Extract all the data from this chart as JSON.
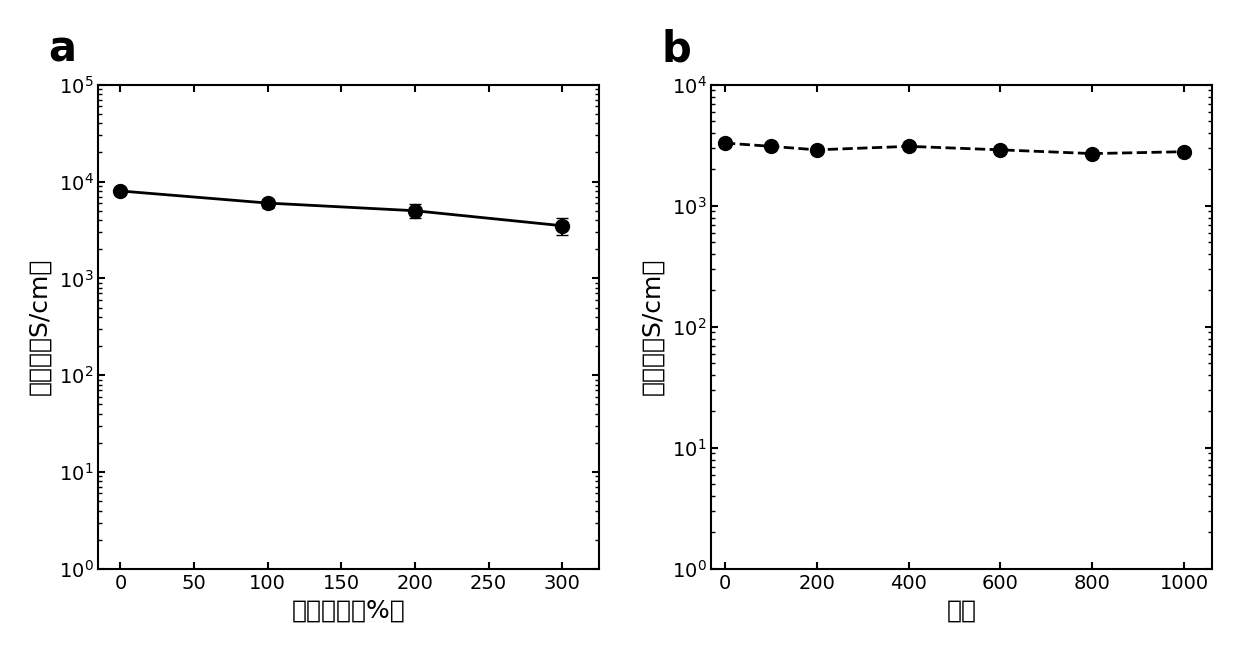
{
  "panel_a": {
    "x": [
      0,
      100,
      200,
      300
    ],
    "y": [
      8000,
      6000,
      5000,
      3500
    ],
    "yerr": [
      500,
      600,
      800,
      700
    ],
    "xlabel": "拉伸应变（%）",
    "ylabel": "电导率（S/cm）",
    "xlim": [
      -15,
      325
    ],
    "ylim": [
      1,
      100000.0
    ],
    "xticks": [
      0,
      50,
      100,
      150,
      200,
      250,
      300
    ],
    "label": "a"
  },
  "panel_b": {
    "x": [
      0,
      100,
      200,
      400,
      600,
      800,
      1000
    ],
    "y": [
      3300,
      3100,
      2900,
      3100,
      2900,
      2700,
      2800
    ],
    "xlabel": "循环",
    "ylabel": "电导率（S/cm）",
    "xlim": [
      -30,
      1060
    ],
    "ylim": [
      1,
      10000.0
    ],
    "xticks": [
      0,
      200,
      400,
      600,
      800,
      1000
    ],
    "label": "b"
  },
  "line_color": "#000000",
  "marker": "o",
  "markersize": 10,
  "linewidth": 2.0,
  "capsize": 4,
  "elinewidth": 1.5,
  "tick_fontsize": 14,
  "panel_label_fontsize": 30,
  "xlabel_fontsize": 18,
  "ylabel_fontsize": 18
}
